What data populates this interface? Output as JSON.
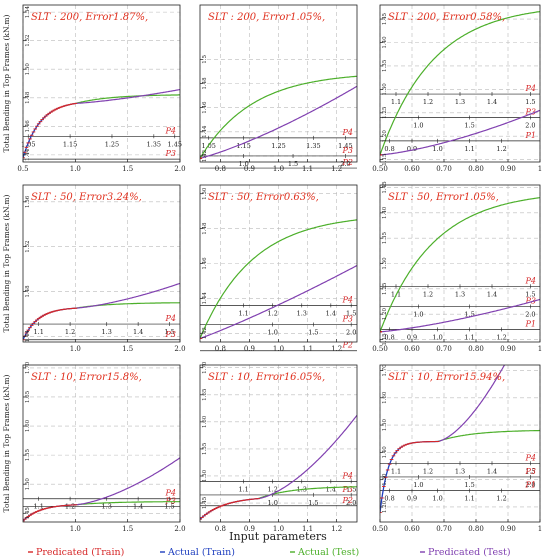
{
  "figure": {
    "ylabel": "Total Bending in Top Frames (kN.m)",
    "xlabel": "Input parameters",
    "legend": [
      {
        "label": "Predicated (Train)",
        "color": "#d62728"
      },
      {
        "label": "Actual (Train)",
        "color": "#1f3fbf"
      },
      {
        "label": "Actual (Test)",
        "color": "#4caf2a"
      },
      {
        "label": "Predicated (Test)",
        "color": "#8040b0"
      }
    ]
  },
  "chart_data": [
    {
      "type": "line",
      "annotation": "SLT : 200, Error1.87%,",
      "xlim": [
        0.5,
        2.0
      ],
      "ylim": [
        1.435,
        1.545
      ],
      "yticks": [
        1.44,
        1.46,
        1.48,
        1.5,
        1.52,
        1.54
      ],
      "ytick_labels": [
        "1.44",
        "1.46",
        "1.48",
        "1.50",
        "1.52",
        "1.54"
      ],
      "xticks": [
        0.5,
        1.0,
        1.5,
        2.0
      ],
      "xtick_labels": [
        "0.5",
        "1.0",
        "1.5",
        "2.0"
      ],
      "rows": [
        {
          "label": "P4",
          "level": 1.453,
          "ticks": [
            [
              0.55,
              "1.05"
            ],
            [
              0.95,
              "1.15"
            ],
            [
              1.35,
              "1.25"
            ],
            [
              1.75,
              "1.35"
            ],
            [
              1.95,
              "1.45"
            ]
          ]
        },
        {
          "label": "P3",
          "level": 1.437,
          "ticks": []
        }
      ],
      "curve": {
        "y0": 1.438,
        "plateau": 1.478,
        "k": 6.0,
        "xk": 1.0,
        "slope_after": 0.004,
        "bend": 0.05,
        "test_end": 1.482
      }
    },
    {
      "type": "line",
      "annotation": "SLT : 200, Error1.05%,",
      "xlim": [
        0.73,
        1.27
      ],
      "ylim": [
        1.415,
        1.545
      ],
      "yticks": [
        1.42,
        1.44,
        1.46,
        1.48,
        1.5
      ],
      "ytick_labels": [
        "1.42",
        "1.44",
        "1.46",
        "1.48",
        "1.5"
      ],
      "xticks": [
        0.8,
        0.9,
        1.0,
        1.1,
        1.2
      ],
      "xtick_labels": [
        "0.8",
        "0.9",
        "1.0",
        "1.1",
        "1.2"
      ],
      "rows": [
        {
          "label": "P4",
          "level": 1.435,
          "ticks": [
            [
              0.76,
              "1.05"
            ],
            [
              0.88,
              "1.15"
            ],
            [
              1.0,
              "1.25"
            ],
            [
              1.12,
              "1.35"
            ],
            [
              1.23,
              "1.45"
            ]
          ]
        },
        {
          "label": "P3",
          "level": 1.42,
          "ticks": [
            [
              0.88,
              "1.0"
            ],
            [
              1.05,
              "1.5"
            ],
            [
              1.23,
              "2.0"
            ]
          ]
        },
        {
          "label": "P2",
          "level": 1.41,
          "ticks": []
        }
      ],
      "curve": {
        "y0": 1.418,
        "plateau": 1.475,
        "k": 14.0,
        "xk": 0.73,
        "slope_after": 0.06,
        "bend": 0.2,
        "test_end": 1.486
      }
    },
    {
      "type": "line",
      "annotation": "SLT : 200, Error0.58%,",
      "xlim": [
        0.5,
        1.0
      ],
      "ylim": [
        1.145,
        1.48
      ],
      "yticks": [
        1.15,
        1.2,
        1.25,
        1.3,
        1.35,
        1.4,
        1.45
      ],
      "ytick_labels": [
        "1.15",
        "1.20",
        "1.25",
        "1.30",
        "1.35",
        "1.40",
        "1.45"
      ],
      "xticks": [
        0.5,
        0.6,
        0.7,
        0.8,
        0.9,
        1.0
      ],
      "xtick_labels": [
        "0.50",
        "0.60",
        "0.70",
        "0.80",
        "0.90",
        "1"
      ],
      "rows": [
        {
          "label": "P4",
          "level": 1.29,
          "ticks": [
            [
              0.55,
              "1.1"
            ],
            [
              0.65,
              "1.2"
            ],
            [
              0.75,
              "1.3"
            ],
            [
              0.85,
              "1.4"
            ],
            [
              0.97,
              "1.5"
            ]
          ]
        },
        {
          "label": "P3",
          "level": 1.24,
          "ticks": [
            [
              0.62,
              "1.0"
            ],
            [
              0.78,
              "1.5"
            ],
            [
              0.97,
              "2.0"
            ]
          ]
        },
        {
          "label": "P1",
          "level": 1.19,
          "ticks": [
            [
              0.53,
              "0.8"
            ],
            [
              0.6,
              "0.9"
            ],
            [
              0.68,
              "1.0"
            ],
            [
              0.78,
              "1.1"
            ],
            [
              0.88,
              "1.2"
            ]
          ]
        }
      ],
      "curve": {
        "y0": 1.16,
        "plateau": 1.452,
        "k": 45.0,
        "xk": 0.5,
        "slope_after": 0.05,
        "bend": 0.2,
        "test_end": 1.466
      }
    },
    {
      "type": "line",
      "annotation": "SLT : 50, Error3.24%,",
      "xlim": [
        0.5,
        2.0
      ],
      "ylim": [
        1.435,
        1.575
      ],
      "yticks": [
        1.44,
        1.48,
        1.52,
        1.56
      ],
      "ytick_labels": [
        "1.44",
        "1.48",
        "1.52",
        "1.56"
      ],
      "xticks": [
        1.0,
        1.5,
        2.0
      ],
      "xtick_labels": [
        "1.0",
        "1.5",
        "2.0"
      ],
      "rows": [
        {
          "label": "P4",
          "level": 1.451,
          "ticks": [
            [
              0.65,
              "1.1"
            ],
            [
              0.95,
              "1.2"
            ],
            [
              1.3,
              "1.3"
            ],
            [
              1.6,
              "1.4"
            ],
            [
              1.9,
              "1.5"
            ]
          ]
        },
        {
          "label": "P3",
          "level": 1.437,
          "ticks": []
        }
      ],
      "curve": {
        "y0": 1.437,
        "plateau": 1.466,
        "k": 7.0,
        "xk": 1.0,
        "slope_after": 0.006,
        "bend": 0.11,
        "test_end": 1.47
      }
    },
    {
      "type": "line",
      "annotation": "SLT : 50, Error0.63%,",
      "xlim": [
        0.73,
        1.27
      ],
      "ylim": [
        1.415,
        1.505
      ],
      "yticks": [
        1.42,
        1.44,
        1.46,
        1.48,
        1.5
      ],
      "ytick_labels": [
        "1.42",
        "1.44",
        "1.46",
        "1.48",
        "1.50"
      ],
      "xticks": [
        0.8,
        0.9,
        1.0,
        1.1,
        1.2
      ],
      "xtick_labels": [
        "0.8",
        "0.9",
        "1.0",
        "1.1",
        "1.2"
      ],
      "rows": [
        {
          "label": "P4",
          "level": 1.436,
          "ticks": [
            [
              0.88,
              "1.1"
            ],
            [
              0.98,
              "1.2"
            ],
            [
              1.08,
              "1.3"
            ],
            [
              1.18,
              "1.4"
            ],
            [
              1.25,
              "1.5"
            ]
          ]
        },
        {
          "label": "P3",
          "level": 1.425,
          "ticks": [
            [
              0.98,
              "1.0"
            ],
            [
              1.12,
              "1.5"
            ],
            [
              1.25,
              "2.0"
            ]
          ]
        },
        {
          "label": "P2",
          "level": 1.41,
          "ticks": []
        }
      ],
      "curve": {
        "y0": 1.417,
        "plateau": 1.466,
        "k": 15.0,
        "xk": 0.73,
        "slope_after": 0.06,
        "bend": 0.1,
        "test_end": 1.485
      }
    },
    {
      "type": "line",
      "annotation": "SLT : 50, Error1.05%,",
      "xlim": [
        0.5,
        1.0
      ],
      "ylim": [
        1.145,
        1.455
      ],
      "yticks": [
        1.15,
        1.2,
        1.25,
        1.3,
        1.35,
        1.4,
        1.45
      ],
      "ytick_labels": [
        "1.15",
        "1.20",
        "1.25",
        "1.30",
        "1.35",
        "1.40",
        "1.45"
      ],
      "xticks": [
        0.5,
        0.6,
        0.7,
        0.8,
        0.9,
        1.0
      ],
      "xtick_labels": [
        "0.50",
        "0.60",
        "0.70",
        "0.80",
        "0.90",
        "1"
      ],
      "rows": [
        {
          "label": "P4",
          "level": 1.255,
          "ticks": [
            [
              0.55,
              "1.1"
            ],
            [
              0.65,
              "1.2"
            ],
            [
              0.75,
              "1.3"
            ],
            [
              0.85,
              "1.4"
            ],
            [
              0.97,
              "1.5"
            ]
          ]
        },
        {
          "label": "P3",
          "level": 1.215,
          "ticks": [
            [
              0.62,
              "1.0"
            ],
            [
              0.78,
              "1.5"
            ],
            [
              0.97,
              "2.0"
            ]
          ]
        },
        {
          "label": "P1",
          "level": 1.17,
          "ticks": [
            [
              0.53,
              "0.8"
            ],
            [
              0.6,
              "0.9"
            ],
            [
              0.68,
              "1.0"
            ],
            [
              0.78,
              "1.1"
            ],
            [
              0.88,
              "1.2"
            ]
          ]
        }
      ],
      "curve": {
        "y0": 1.165,
        "plateau": 1.41,
        "k": 40.0,
        "xk": 0.5,
        "slope_after": 0.05,
        "bend": 0.12,
        "test_end": 1.43
      }
    },
    {
      "type": "line",
      "annotation": "SLT : 10, Error15.8%,",
      "xlim": [
        0.5,
        2.0
      ],
      "ylim": [
        1.435,
        1.705
      ],
      "yticks": [
        1.45,
        1.5,
        1.55,
        1.6,
        1.65,
        1.7
      ],
      "ytick_labels": [
        "1.45",
        "1.50",
        "1.55",
        "1.60",
        "1.65",
        "1.70"
      ],
      "xticks": [
        1.0,
        1.5,
        2.0
      ],
      "xtick_labels": [
        "1.0",
        "1.5",
        "2.0"
      ],
      "rows": [
        {
          "label": "P4",
          "level": 1.475,
          "ticks": [
            [
              0.65,
              "1.1"
            ],
            [
              0.95,
              "1.2"
            ],
            [
              1.3,
              "1.3"
            ],
            [
              1.6,
              "1.4"
            ],
            [
              1.9,
              "1.5"
            ]
          ]
        },
        {
          "label": "P3",
          "level": 1.462,
          "ticks": []
        }
      ],
      "curve": {
        "y0": 1.437,
        "plateau": 1.466,
        "k": 6.0,
        "xk": 1.0,
        "slope_after": 0.01,
        "bend": 0.25,
        "test_end": 1.47
      }
    },
    {
      "type": "line",
      "annotation": "SLT : 10, Error16.05%,",
      "xlim": [
        0.73,
        1.27
      ],
      "ylim": [
        1.415,
        1.705
      ],
      "yticks": [
        1.45,
        1.5,
        1.55,
        1.6,
        1.65,
        1.7
      ],
      "ytick_labels": [
        "1.45",
        "1.50",
        "1.55",
        "1.60",
        "1.65",
        "1.70"
      ],
      "xticks": [
        0.8,
        0.9,
        1.0,
        1.1,
        1.2
      ],
      "xtick_labels": [
        "0.8",
        "0.9",
        "1.0",
        "1.1",
        "1.2"
      ],
      "rows": [
        {
          "label": "P4",
          "level": 1.49,
          "ticks": [
            [
              0.88,
              "1.1"
            ],
            [
              0.98,
              "1.2"
            ],
            [
              1.08,
              "1.3"
            ],
            [
              1.18,
              "1.4"
            ],
            [
              1.25,
              "1.5"
            ]
          ]
        },
        {
          "label": "P3",
          "level": 1.465,
          "ticks": [
            [
              0.98,
              "1.0"
            ],
            [
              1.12,
              "1.5"
            ],
            [
              1.25,
              "2.0"
            ]
          ]
        },
        {
          "label": "P2",
          "level": 1.445,
          "ticks": []
        }
      ],
      "curve": {
        "y0": 1.42,
        "plateau": 1.462,
        "k": 12.0,
        "xk": 0.93,
        "slope_after": 0.05,
        "bend": 0.45,
        "test_end": 1.48
      }
    },
    {
      "type": "line",
      "annotation": "SLT : 10, Error15.94%,",
      "xlim": [
        0.5,
        1.0
      ],
      "ylim": [
        1.145,
        1.72
      ],
      "yticks": [
        1.2,
        1.3,
        1.4,
        1.5,
        1.6,
        1.7
      ],
      "ytick_labels": [
        "1.20",
        "1.30",
        "1.40",
        "1.50",
        "1.60",
        "1.70"
      ],
      "xticks": [
        0.5,
        0.6,
        0.7,
        0.8,
        0.9,
        1.0
      ],
      "xtick_labels": [
        "0.50",
        "0.60",
        "0.70",
        "0.80",
        "0.90",
        "1"
      ],
      "rows": [
        {
          "label": "P4",
          "level": 1.36,
          "ticks": [
            [
              0.55,
              "1.1"
            ],
            [
              0.65,
              "1.2"
            ],
            [
              0.75,
              "1.3"
            ],
            [
              0.85,
              "1.4"
            ],
            [
              0.97,
              "1.5"
            ]
          ]
        },
        {
          "label": "P3",
          "level": 1.31,
          "ticks": [
            [
              0.62,
              "1.0"
            ],
            [
              0.78,
              "1.5"
            ],
            [
              0.97,
              "2.0"
            ]
          ]
        },
        {
          "label": "P1",
          "level": 1.26,
          "ticks": [
            [
              0.53,
              "0.8"
            ],
            [
              0.6,
              "0.9"
            ],
            [
              0.68,
              "1.0"
            ],
            [
              0.78,
              "1.1"
            ],
            [
              0.88,
              "1.2"
            ]
          ]
        }
      ],
      "curve": {
        "y0": 1.18,
        "plateau": 1.44,
        "k": 38.0,
        "xk": 0.68,
        "slope_after": 0.1,
        "bend": 0.85,
        "test_end": 1.48
      }
    }
  ]
}
